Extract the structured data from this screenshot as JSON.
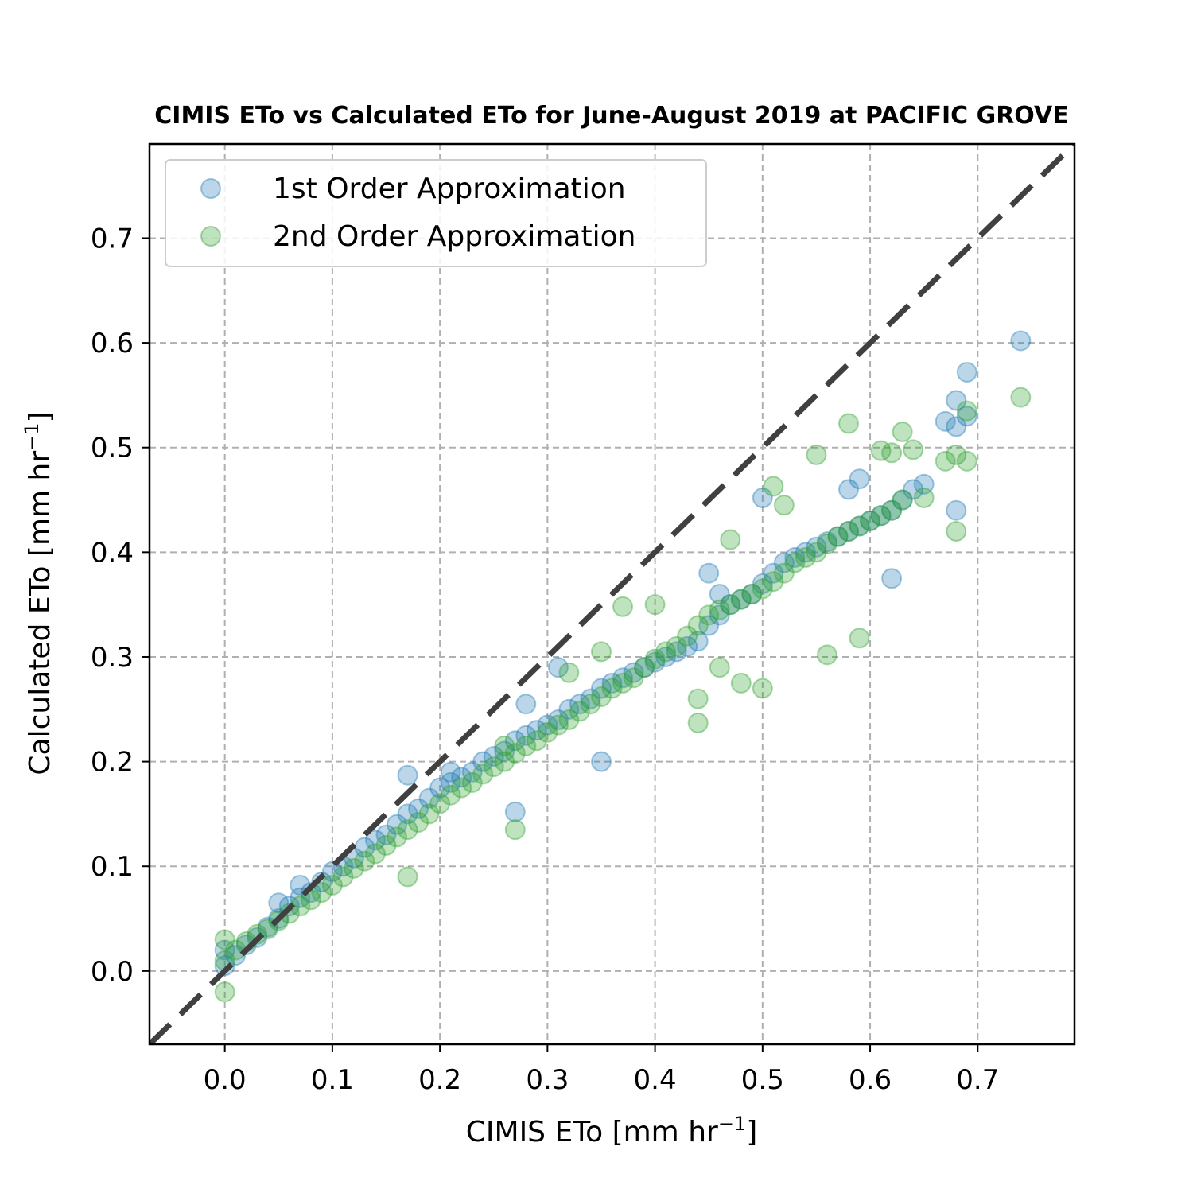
{
  "chart_data": {
    "type": "scatter",
    "title": "CIMIS ETo vs Calculated ETo for June-August 2019 at PACIFIC GROVE",
    "xlabel": "CIMIS ETo [mm hr",
    "ylabel": "Calculated ETo [mm hr",
    "unit_exponent": "−1",
    "unit_close": "]",
    "xlim": [
      -0.07,
      0.79
    ],
    "ylim": [
      -0.07,
      0.79
    ],
    "x_ticks": [
      "0.0",
      "0.1",
      "0.2",
      "0.3",
      "0.4",
      "0.5",
      "0.6",
      "0.7"
    ],
    "y_ticks": [
      "0.0",
      "0.1",
      "0.2",
      "0.3",
      "0.4",
      "0.5",
      "0.6",
      "0.7"
    ],
    "grid": true,
    "legend_position": "top-left",
    "reference_line": {
      "x": [
        -0.07,
        0.79
      ],
      "y": [
        -0.07,
        0.79
      ],
      "style": "dashed",
      "color": "#404040"
    },
    "series": [
      {
        "name": "1st Order Approximation",
        "color": "#1f77b4",
        "x": [
          0.0,
          0.0,
          0.01,
          0.02,
          0.03,
          0.04,
          0.05,
          0.06,
          0.07,
          0.08,
          0.09,
          0.1,
          0.11,
          0.12,
          0.13,
          0.14,
          0.15,
          0.16,
          0.17,
          0.18,
          0.19,
          0.2,
          0.21,
          0.22,
          0.23,
          0.24,
          0.25,
          0.26,
          0.27,
          0.28,
          0.29,
          0.3,
          0.31,
          0.32,
          0.33,
          0.34,
          0.35,
          0.36,
          0.37,
          0.38,
          0.39,
          0.4,
          0.41,
          0.42,
          0.43,
          0.44,
          0.45,
          0.46,
          0.47,
          0.48,
          0.49,
          0.5,
          0.51,
          0.52,
          0.53,
          0.54,
          0.55,
          0.56,
          0.57,
          0.58,
          0.59,
          0.6,
          0.61,
          0.62,
          0.63,
          0.64,
          0.65,
          0.67,
          0.68,
          0.68,
          0.69,
          0.69,
          0.68,
          0.74,
          0.5,
          0.31,
          0.28,
          0.17,
          0.21,
          0.35,
          0.27,
          0.07,
          0.05,
          0.45,
          0.46,
          0.58,
          0.59,
          0.62
        ],
        "y": [
          0.005,
          0.02,
          0.015,
          0.025,
          0.032,
          0.042,
          0.05,
          0.062,
          0.07,
          0.075,
          0.085,
          0.095,
          0.1,
          0.108,
          0.118,
          0.125,
          0.13,
          0.14,
          0.15,
          0.155,
          0.165,
          0.175,
          0.18,
          0.185,
          0.19,
          0.2,
          0.205,
          0.21,
          0.22,
          0.225,
          0.23,
          0.235,
          0.24,
          0.25,
          0.255,
          0.26,
          0.27,
          0.275,
          0.28,
          0.285,
          0.29,
          0.295,
          0.3,
          0.305,
          0.31,
          0.315,
          0.33,
          0.34,
          0.35,
          0.355,
          0.36,
          0.37,
          0.38,
          0.39,
          0.395,
          0.4,
          0.405,
          0.41,
          0.415,
          0.42,
          0.425,
          0.43,
          0.435,
          0.44,
          0.45,
          0.46,
          0.465,
          0.525,
          0.545,
          0.52,
          0.572,
          0.53,
          0.44,
          0.602,
          0.452,
          0.29,
          0.255,
          0.187,
          0.19,
          0.2,
          0.152,
          0.082,
          0.065,
          0.38,
          0.36,
          0.46,
          0.47,
          0.375
        ]
      },
      {
        "name": "2nd Order Approximation",
        "color": "#2ca02c",
        "x": [
          0.0,
          0.0,
          0.0,
          0.01,
          0.02,
          0.03,
          0.04,
          0.05,
          0.06,
          0.07,
          0.08,
          0.09,
          0.1,
          0.11,
          0.12,
          0.13,
          0.14,
          0.15,
          0.16,
          0.17,
          0.18,
          0.19,
          0.2,
          0.21,
          0.22,
          0.23,
          0.24,
          0.25,
          0.26,
          0.27,
          0.28,
          0.29,
          0.3,
          0.31,
          0.32,
          0.33,
          0.34,
          0.35,
          0.36,
          0.37,
          0.38,
          0.39,
          0.4,
          0.41,
          0.42,
          0.43,
          0.44,
          0.45,
          0.46,
          0.47,
          0.48,
          0.49,
          0.5,
          0.51,
          0.52,
          0.53,
          0.54,
          0.55,
          0.56,
          0.57,
          0.58,
          0.59,
          0.6,
          0.61,
          0.62,
          0.63,
          0.64,
          0.65,
          0.67,
          0.68,
          0.68,
          0.69,
          0.69,
          0.74,
          0.58,
          0.55,
          0.51,
          0.52,
          0.4,
          0.35,
          0.27,
          0.17,
          0.44,
          0.44,
          0.56,
          0.59,
          0.63,
          0.62,
          0.61,
          0.5,
          0.37,
          0.26,
          0.32,
          0.47,
          0.46,
          0.48
        ],
        "y": [
          -0.02,
          0.01,
          0.03,
          0.02,
          0.028,
          0.035,
          0.04,
          0.048,
          0.055,
          0.062,
          0.068,
          0.075,
          0.082,
          0.09,
          0.098,
          0.105,
          0.112,
          0.12,
          0.128,
          0.135,
          0.142,
          0.15,
          0.16,
          0.168,
          0.175,
          0.18,
          0.188,
          0.195,
          0.2,
          0.208,
          0.215,
          0.22,
          0.228,
          0.235,
          0.24,
          0.248,
          0.255,
          0.262,
          0.27,
          0.275,
          0.28,
          0.29,
          0.298,
          0.305,
          0.31,
          0.32,
          0.33,
          0.34,
          0.345,
          0.35,
          0.355,
          0.36,
          0.365,
          0.372,
          0.38,
          0.39,
          0.395,
          0.4,
          0.408,
          0.415,
          0.42,
          0.425,
          0.43,
          0.435,
          0.44,
          0.45,
          0.498,
          0.452,
          0.487,
          0.42,
          0.493,
          0.487,
          0.535,
          0.548,
          0.523,
          0.493,
          0.463,
          0.445,
          0.35,
          0.305,
          0.135,
          0.09,
          0.237,
          0.26,
          0.302,
          0.318,
          0.515,
          0.495,
          0.497,
          0.27,
          0.348,
          0.215,
          0.285,
          0.412,
          0.29,
          0.275
        ]
      }
    ]
  }
}
